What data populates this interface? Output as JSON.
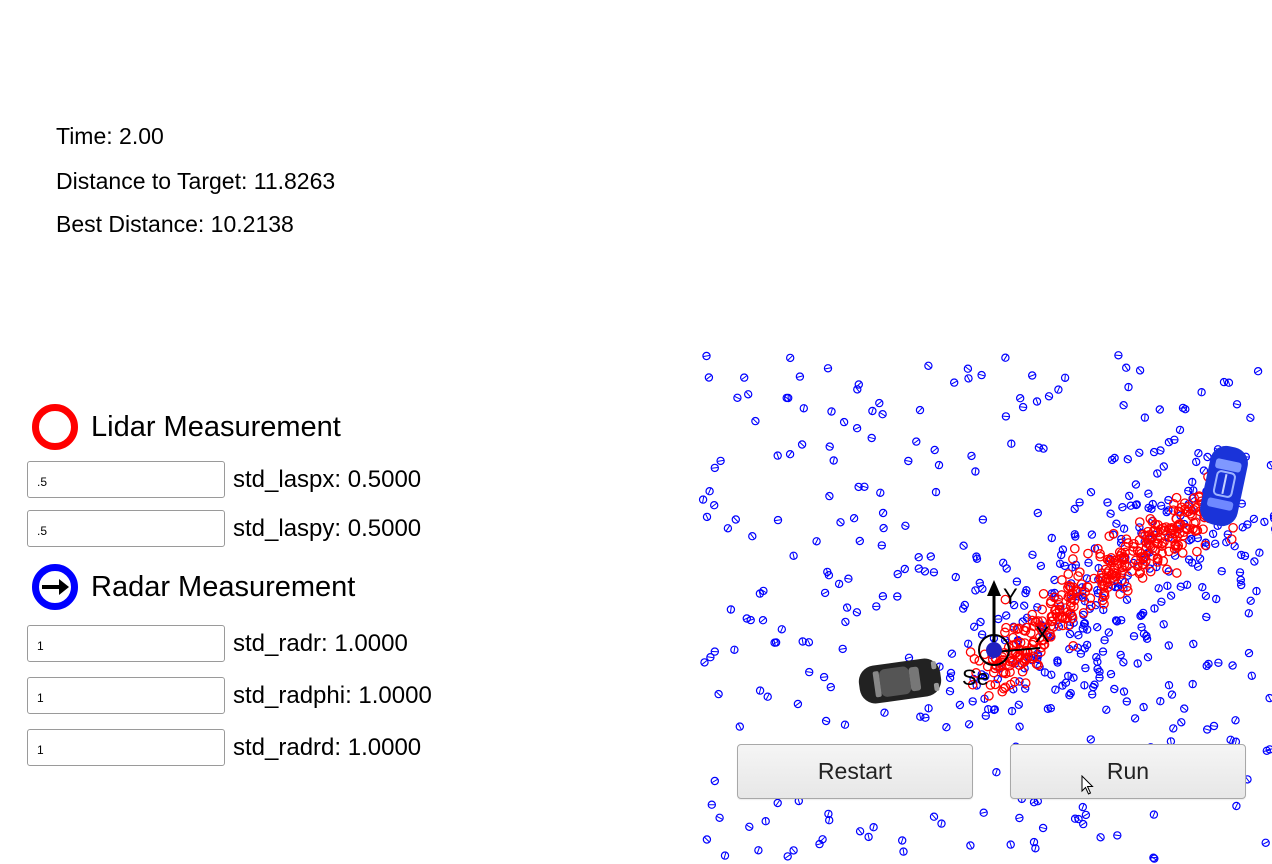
{
  "stats": {
    "time": "Time: 2.00",
    "distance": "Distance to Target: 11.8263",
    "best": "Best Distance: 10.2138"
  },
  "lidar": {
    "title": "Lidar Measurement",
    "color": "#ff0000",
    "params": [
      {
        "input": ".5",
        "label": "std_laspx: 0.5000"
      },
      {
        "input": ".5",
        "label": "std_laspy: 0.5000"
      }
    ]
  },
  "radar": {
    "title": "Radar Measurement",
    "color": "#0000ff",
    "params": [
      {
        "input": "1",
        "label": "std_radr: 1.0000"
      },
      {
        "input": "1",
        "label": "std_radphi: 1.0000"
      },
      {
        "input": "1",
        "label": "std_radrd: 1.0000"
      }
    ]
  },
  "axes": {
    "x_label": "X",
    "y_label": "Y",
    "origin_label": "Se"
  },
  "buttons": {
    "restart": "Restart",
    "run": "Run"
  }
}
